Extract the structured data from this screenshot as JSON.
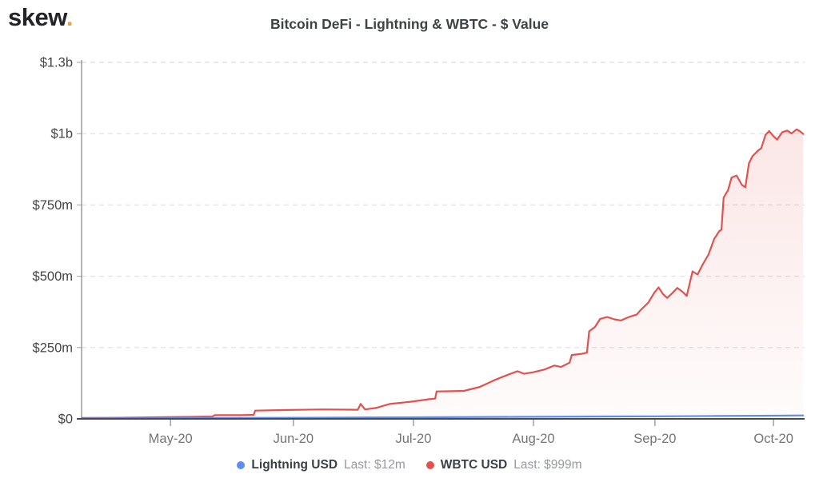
{
  "logo": {
    "text": "skew",
    "dot": ".",
    "dot_color": "#f0a33a"
  },
  "header": {
    "title": "Bitcoin DeFi - Lightning & WBTC - $ Value"
  },
  "chart_data": {
    "type": "area",
    "title": "Bitcoin DeFi - Lightning & WBTC - $ Value",
    "xlabel": "",
    "ylabel": "",
    "ylim": [
      0,
      1300
    ],
    "grid": "horizontal-dashed",
    "legend_position": "bottom",
    "y_ticks": [
      {
        "label": "$0",
        "value": 0
      },
      {
        "label": "$250m",
        "value": 250
      },
      {
        "label": "$500m",
        "value": 500
      },
      {
        "label": "$750m",
        "value": 750
      },
      {
        "label": "$1b",
        "value": 1000
      },
      {
        "label": "$1.3b",
        "value": 1300
      }
    ],
    "x_ticks": [
      {
        "label": "May-20",
        "f": 0.123
      },
      {
        "label": "Jun-20",
        "f": 0.293
      },
      {
        "label": "Jul-20",
        "f": 0.459
      },
      {
        "label": "Aug-20",
        "f": 0.625
      },
      {
        "label": "Sep-20",
        "f": 0.793
      },
      {
        "label": "Oct-20",
        "f": 0.957
      }
    ],
    "series": [
      {
        "name": "WBTC USD",
        "last": "Last: $999m",
        "color": "#e2514d",
        "fill": true,
        "points": [
          [
            0.0,
            3
          ],
          [
            0.053,
            4
          ],
          [
            0.114,
            6
          ],
          [
            0.153,
            7
          ],
          [
            0.181,
            8
          ],
          [
            0.184,
            13
          ],
          [
            0.219,
            13
          ],
          [
            0.238,
            14
          ],
          [
            0.24,
            29
          ],
          [
            0.285,
            31
          ],
          [
            0.335,
            33
          ],
          [
            0.382,
            32
          ],
          [
            0.386,
            52
          ],
          [
            0.392,
            33
          ],
          [
            0.407,
            38
          ],
          [
            0.426,
            52
          ],
          [
            0.455,
            60
          ],
          [
            0.481,
            69
          ],
          [
            0.489,
            71
          ],
          [
            0.491,
            96
          ],
          [
            0.512,
            97
          ],
          [
            0.529,
            98
          ],
          [
            0.551,
            112
          ],
          [
            0.573,
            138
          ],
          [
            0.59,
            155
          ],
          [
            0.603,
            167
          ],
          [
            0.612,
            158
          ],
          [
            0.624,
            163
          ],
          [
            0.639,
            172
          ],
          [
            0.654,
            187
          ],
          [
            0.663,
            182
          ],
          [
            0.675,
            197
          ],
          [
            0.678,
            224
          ],
          [
            0.692,
            228
          ],
          [
            0.699,
            232
          ],
          [
            0.702,
            307
          ],
          [
            0.71,
            322
          ],
          [
            0.717,
            350
          ],
          [
            0.727,
            357
          ],
          [
            0.737,
            349
          ],
          [
            0.746,
            345
          ],
          [
            0.757,
            357
          ],
          [
            0.768,
            366
          ],
          [
            0.773,
            381
          ],
          [
            0.784,
            408
          ],
          [
            0.792,
            442
          ],
          [
            0.798,
            461
          ],
          [
            0.804,
            438
          ],
          [
            0.81,
            424
          ],
          [
            0.817,
            441
          ],
          [
            0.824,
            459
          ],
          [
            0.831,
            446
          ],
          [
            0.837,
            431
          ],
          [
            0.845,
            517
          ],
          [
            0.852,
            506
          ],
          [
            0.859,
            541
          ],
          [
            0.867,
            576
          ],
          [
            0.875,
            631
          ],
          [
            0.882,
            658
          ],
          [
            0.885,
            663
          ],
          [
            0.888,
            776
          ],
          [
            0.894,
            801
          ],
          [
            0.899,
            846
          ],
          [
            0.906,
            853
          ],
          [
            0.913,
            821
          ],
          [
            0.918,
            812
          ],
          [
            0.923,
            896
          ],
          [
            0.928,
            921
          ],
          [
            0.935,
            939
          ],
          [
            0.94,
            949
          ],
          [
            0.946,
            996
          ],
          [
            0.951,
            1011
          ],
          [
            0.957,
            991
          ],
          [
            0.962,
            979
          ],
          [
            0.969,
            1006
          ],
          [
            0.976,
            1013
          ],
          [
            0.982,
            1001
          ],
          [
            0.989,
            1018
          ],
          [
            0.994,
            1009
          ],
          [
            0.998,
            999
          ]
        ]
      },
      {
        "name": "Lightning USD",
        "last": "Last: $12m",
        "color": "#5b8df2",
        "fill": false,
        "points": [
          [
            0.0,
            1.5
          ],
          [
            0.1,
            2
          ],
          [
            0.2,
            3
          ],
          [
            0.3,
            4
          ],
          [
            0.4,
            5
          ],
          [
            0.5,
            6
          ],
          [
            0.6,
            7
          ],
          [
            0.7,
            8
          ],
          [
            0.8,
            9
          ],
          [
            0.88,
            10
          ],
          [
            0.94,
            11
          ],
          [
            0.998,
            12
          ]
        ]
      }
    ],
    "legend": [
      {
        "name": "Lightning USD",
        "last": "Last: $12m",
        "color": "#5b8df2"
      },
      {
        "name": "WBTC USD",
        "last": "Last: $999m",
        "color": "#e2514d"
      }
    ]
  }
}
